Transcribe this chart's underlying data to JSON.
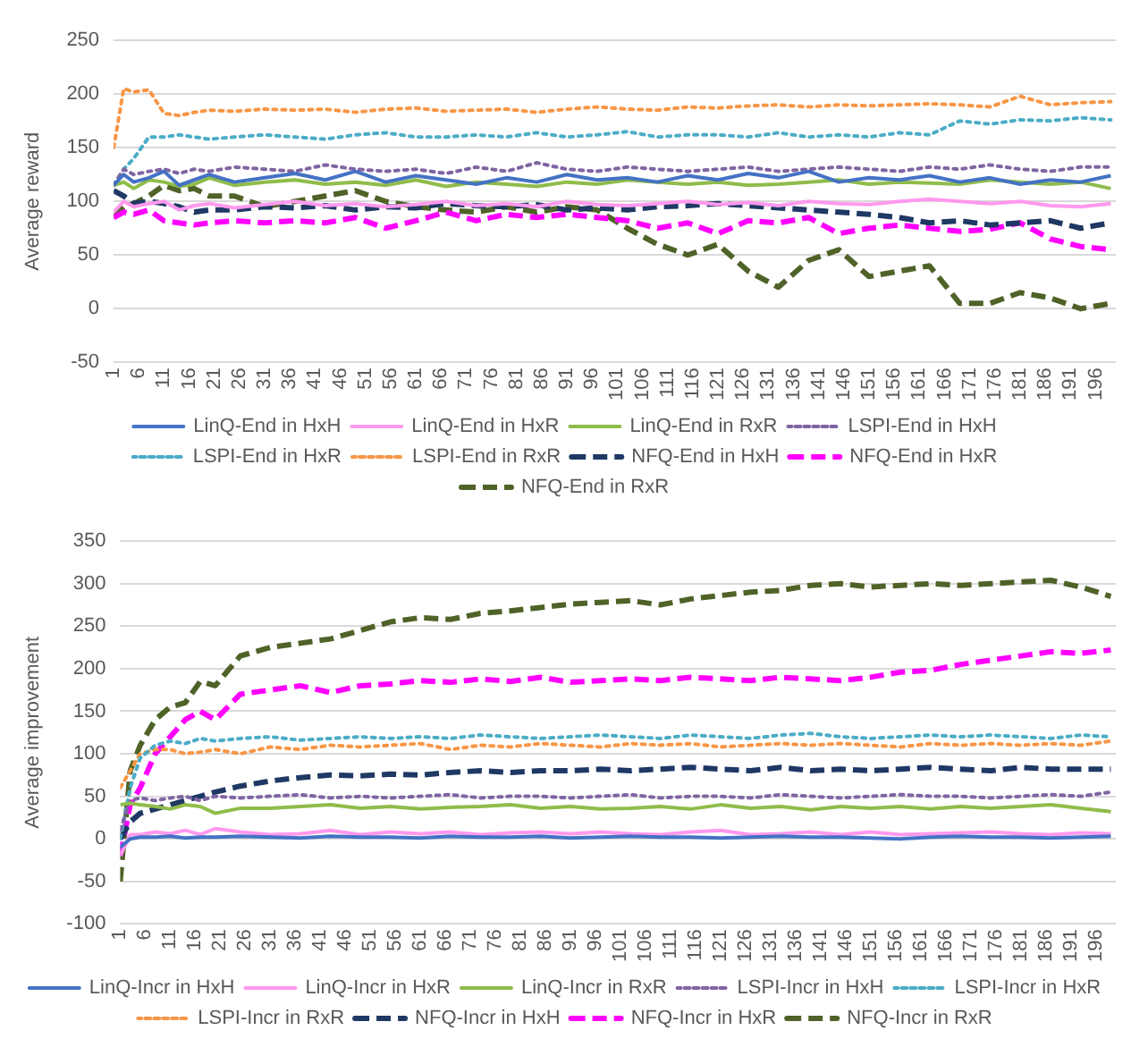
{
  "chart_data": [
    {
      "type": "line",
      "ylabel": "Average reward",
      "xlim": [
        1,
        200
      ],
      "xticks": [
        1,
        6,
        11,
        16,
        21,
        26,
        31,
        36,
        41,
        46,
        51,
        56,
        61,
        66,
        71,
        76,
        81,
        86,
        91,
        96,
        101,
        106,
        111,
        116,
        121,
        126,
        131,
        136,
        141,
        146,
        151,
        156,
        161,
        166,
        171,
        176,
        181,
        186,
        191,
        196
      ],
      "ylim": [
        -50,
        250
      ],
      "yticks": [
        -50,
        0,
        50,
        100,
        150,
        200,
        250
      ],
      "grid": "y",
      "legend": "bottom",
      "marker": "none",
      "x": [
        1,
        3,
        5,
        8,
        11,
        14,
        17,
        20,
        25,
        31,
        37,
        43,
        49,
        55,
        61,
        67,
        73,
        79,
        85,
        91,
        97,
        103,
        109,
        115,
        121,
        127,
        133,
        139,
        145,
        151,
        157,
        163,
        169,
        175,
        181,
        187,
        193,
        199
      ],
      "series": [
        {
          "name": "LinQ-End in HxH",
          "color": "#4472c4",
          "line_style": "solid",
          "values": [
            115,
            125,
            118,
            122,
            128,
            115,
            120,
            125,
            118,
            122,
            126,
            120,
            128,
            118,
            124,
            120,
            116,
            122,
            118,
            125,
            120,
            122,
            118,
            124,
            120,
            126,
            122,
            128,
            118,
            122,
            120,
            124,
            118,
            122,
            116,
            120,
            118,
            124
          ]
        },
        {
          "name": "LinQ-End in HxR",
          "color": "#ff99ee",
          "line_style": "solid",
          "values": [
            90,
            100,
            95,
            98,
            100,
            92,
            96,
            98,
            94,
            97,
            100,
            96,
            98,
            95,
            97,
            100,
            96,
            98,
            95,
            100,
            97,
            96,
            98,
            100,
            97,
            99,
            96,
            100,
            98,
            97,
            100,
            102,
            100,
            98,
            100,
            96,
            95,
            98
          ]
        },
        {
          "name": "LinQ-End in RxR",
          "color": "#8fbc4a",
          "line_style": "solid",
          "values": [
            115,
            118,
            112,
            120,
            118,
            114,
            116,
            122,
            115,
            118,
            120,
            116,
            118,
            115,
            120,
            114,
            118,
            116,
            114,
            118,
            116,
            120,
            118,
            116,
            118,
            115,
            116,
            118,
            120,
            116,
            118,
            117,
            116,
            120,
            118,
            116,
            118,
            112
          ]
        },
        {
          "name": "LSPI-End in HxH",
          "color": "#8064a2",
          "line_style": "dotted",
          "values": [
            115,
            130,
            125,
            128,
            130,
            126,
            130,
            128,
            132,
            130,
            128,
            134,
            130,
            128,
            130,
            126,
            132,
            128,
            136,
            130,
            128,
            132,
            130,
            128,
            130,
            132,
            128,
            130,
            132,
            130,
            128,
            132,
            130,
            134,
            130,
            128,
            132,
            132
          ]
        },
        {
          "name": "LSPI-End in HxR",
          "color": "#4bacc6",
          "line_style": "dotted",
          "values": [
            115,
            130,
            140,
            160,
            160,
            162,
            160,
            158,
            160,
            162,
            160,
            158,
            162,
            164,
            160,
            160,
            162,
            160,
            164,
            160,
            162,
            165,
            160,
            162,
            162,
            160,
            164,
            160,
            162,
            160,
            164,
            162,
            175,
            172,
            176,
            175,
            178,
            176
          ]
        },
        {
          "name": "LSPI-End in RxR",
          "color": "#f79646",
          "line_style": "dotted",
          "values": [
            150,
            205,
            202,
            204,
            182,
            180,
            183,
            185,
            184,
            186,
            185,
            186,
            183,
            186,
            187,
            184,
            185,
            186,
            183,
            186,
            188,
            186,
            185,
            188,
            187,
            189,
            190,
            188,
            190,
            189,
            190,
            191,
            190,
            188,
            198,
            190,
            192,
            193
          ]
        },
        {
          "name": "NFQ-End in HxH",
          "color": "#1f3864",
          "line_style": "dashed",
          "values": [
            110,
            105,
            98,
            100,
            98,
            95,
            90,
            92,
            92,
            95,
            94,
            96,
            92,
            95,
            94,
            98,
            96,
            95,
            97,
            92,
            94,
            92,
            95,
            96,
            98,
            96,
            94,
            92,
            90,
            88,
            85,
            80,
            82,
            78,
            80,
            82,
            75,
            80
          ]
        },
        {
          "name": "NFQ-End in HxR",
          "color": "#ff00ff",
          "line_style": "dashed",
          "values": [
            85,
            90,
            88,
            92,
            82,
            80,
            78,
            80,
            82,
            80,
            82,
            80,
            85,
            75,
            82,
            90,
            82,
            88,
            85,
            88,
            85,
            82,
            75,
            80,
            70,
            82,
            80,
            85,
            70,
            75,
            78,
            75,
            72,
            74,
            80,
            65,
            58,
            55
          ]
        },
        {
          "name": "NFQ-End in RxR",
          "color": "#4f6228",
          "line_style": "dashed",
          "values": [
            85,
            95,
            98,
            105,
            115,
            110,
            112,
            105,
            105,
            95,
            100,
            105,
            110,
            100,
            95,
            92,
            90,
            95,
            90,
            95,
            92,
            75,
            60,
            50,
            60,
            35,
            20,
            45,
            55,
            30,
            35,
            40,
            5,
            5,
            15,
            10,
            0,
            5
          ]
        }
      ]
    },
    {
      "type": "line",
      "ylabel": "Average improvement",
      "xlim": [
        1,
        200
      ],
      "xticks": [
        1,
        6,
        11,
        16,
        21,
        26,
        31,
        36,
        41,
        46,
        51,
        56,
        61,
        66,
        71,
        76,
        81,
        86,
        91,
        96,
        101,
        106,
        111,
        116,
        121,
        126,
        131,
        136,
        141,
        146,
        151,
        156,
        161,
        166,
        171,
        176,
        181,
        186,
        191,
        196
      ],
      "ylim": [
        -100,
        350
      ],
      "yticks": [
        -100,
        -50,
        0,
        50,
        100,
        150,
        200,
        250,
        300,
        350
      ],
      "grid": "y",
      "legend": "bottom",
      "marker": "none",
      "x": [
        1,
        3,
        5,
        8,
        11,
        14,
        17,
        20,
        25,
        31,
        37,
        43,
        49,
        55,
        61,
        67,
        73,
        79,
        85,
        91,
        97,
        103,
        109,
        115,
        121,
        127,
        133,
        139,
        145,
        151,
        157,
        163,
        169,
        175,
        181,
        187,
        193,
        199
      ],
      "series": [
        {
          "name": "LinQ-Incr in HxH",
          "color": "#4472c4",
          "line_style": "solid",
          "values": [
            -10,
            0,
            2,
            2,
            3,
            1,
            2,
            2,
            3,
            2,
            1,
            3,
            2,
            2,
            1,
            3,
            2,
            2,
            3,
            1,
            2,
            3,
            2,
            2,
            1,
            2,
            3,
            2,
            2,
            1,
            0,
            2,
            3,
            2,
            2,
            1,
            2,
            3
          ]
        },
        {
          "name": "LinQ-Incr in HxR",
          "color": "#ff99ee",
          "line_style": "solid",
          "values": [
            -20,
            5,
            5,
            8,
            6,
            10,
            5,
            12,
            8,
            5,
            6,
            10,
            5,
            8,
            6,
            8,
            5,
            7,
            8,
            6,
            8,
            6,
            5,
            8,
            10,
            5,
            6,
            8,
            5,
            8,
            5,
            6,
            7,
            8,
            6,
            5,
            7,
            6
          ]
        },
        {
          "name": "LinQ-Incr in RxR",
          "color": "#8fbc4a",
          "line_style": "solid",
          "values": [
            40,
            42,
            40,
            38,
            35,
            40,
            38,
            30,
            36,
            36,
            38,
            40,
            36,
            38,
            35,
            37,
            38,
            40,
            36,
            38,
            35,
            36,
            38,
            35,
            40,
            36,
            38,
            34,
            38,
            36,
            38,
            35,
            38,
            36,
            38,
            40,
            36,
            32
          ]
        },
        {
          "name": "LSPI-Incr in HxH",
          "color": "#8064a2",
          "line_style": "dotted",
          "values": [
            10,
            45,
            48,
            45,
            48,
            50,
            45,
            50,
            48,
            50,
            52,
            48,
            50,
            48,
            50,
            52,
            48,
            50,
            50,
            48,
            50,
            52,
            48,
            50,
            50,
            48,
            52,
            50,
            48,
            50,
            52,
            50,
            50,
            48,
            50,
            52,
            50,
            55
          ]
        },
        {
          "name": "LSPI-Incr in HxR",
          "color": "#4bacc6",
          "line_style": "dotted",
          "values": [
            0,
            60,
            95,
            110,
            115,
            112,
            118,
            115,
            118,
            120,
            116,
            118,
            120,
            118,
            120,
            118,
            122,
            120,
            118,
            120,
            122,
            120,
            118,
            122,
            120,
            118,
            122,
            124,
            120,
            118,
            120,
            122,
            120,
            122,
            120,
            118,
            122,
            120
          ]
        },
        {
          "name": "LSPI-Incr in RxR",
          "color": "#f79646",
          "line_style": "dotted",
          "values": [
            60,
            80,
            100,
            105,
            105,
            100,
            102,
            105,
            100,
            108,
            105,
            110,
            108,
            110,
            112,
            105,
            110,
            108,
            112,
            110,
            108,
            112,
            110,
            112,
            108,
            110,
            112,
            110,
            112,
            110,
            108,
            112,
            110,
            112,
            110,
            112,
            110,
            115
          ]
        },
        {
          "name": "NFQ-Incr in HxH",
          "color": "#1f3864",
          "line_style": "dashed",
          "values": [
            0,
            20,
            30,
            35,
            40,
            45,
            50,
            55,
            62,
            68,
            72,
            75,
            74,
            76,
            75,
            78,
            80,
            78,
            80,
            80,
            82,
            80,
            82,
            84,
            82,
            80,
            84,
            80,
            82,
            80,
            82,
            84,
            82,
            80,
            84,
            82,
            82,
            82
          ]
        },
        {
          "name": "NFQ-Incr in HxR",
          "color": "#ff00ff",
          "line_style": "dashed",
          "values": [
            -20,
            40,
            60,
            100,
            120,
            140,
            150,
            140,
            170,
            175,
            180,
            172,
            180,
            182,
            186,
            184,
            188,
            185,
            190,
            184,
            186,
            188,
            186,
            190,
            188,
            186,
            190,
            188,
            186,
            190,
            196,
            198,
            205,
            210,
            215,
            220,
            218,
            222
          ]
        },
        {
          "name": "NFQ-Incr in RxR",
          "color": "#4f6228",
          "line_style": "dashed",
          "values": [
            -50,
            80,
            110,
            140,
            155,
            160,
            185,
            180,
            215,
            225,
            230,
            235,
            245,
            255,
            260,
            258,
            265,
            268,
            272,
            276,
            278,
            280,
            275,
            282,
            286,
            290,
            292,
            298,
            300,
            296,
            298,
            300,
            298,
            300,
            302,
            304,
            296,
            285
          ]
        }
      ]
    }
  ]
}
